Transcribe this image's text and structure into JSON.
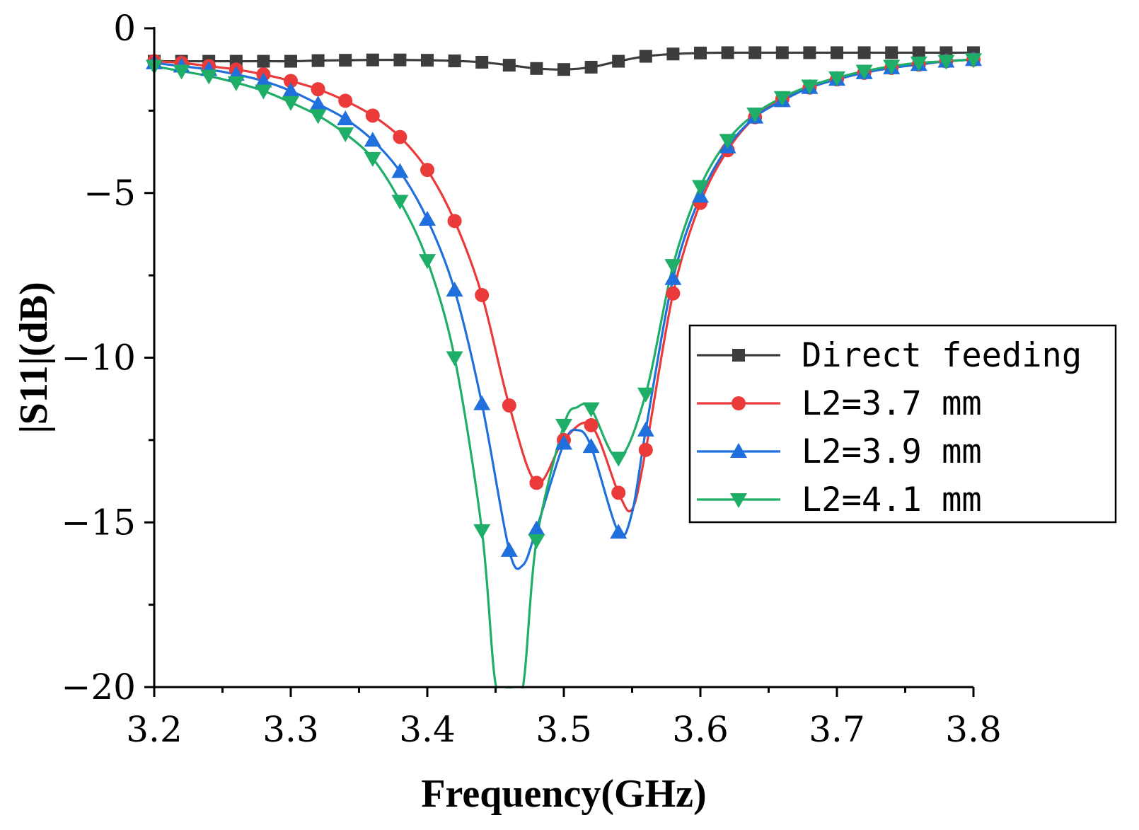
{
  "chart_data": {
    "type": "line",
    "title": "",
    "xlabel": "Frequency(GHz)",
    "ylabel": "|S11|(dB)",
    "xlim": [
      3.2,
      3.8
    ],
    "ylim": [
      -20,
      0
    ],
    "x_ticks": [
      3.2,
      3.3,
      3.4,
      3.5,
      3.6,
      3.7,
      3.8
    ],
    "x_tick_labels": [
      "3.2",
      "3.3",
      "3.4",
      "3.5",
      "3.6",
      "3.7",
      "3.8"
    ],
    "y_ticks": [
      0,
      -5,
      -10,
      -15,
      -20
    ],
    "y_tick_labels": [
      "0",
      "−5",
      "−10",
      "−15",
      "−20"
    ],
    "grid": false,
    "legend_position": "right",
    "series": [
      {
        "name": "Direct feeding",
        "color": "#3d3d3d",
        "marker": "square",
        "x": [
          3.2,
          3.22,
          3.24,
          3.26,
          3.28,
          3.3,
          3.32,
          3.34,
          3.36,
          3.38,
          3.4,
          3.42,
          3.44,
          3.46,
          3.48,
          3.5,
          3.52,
          3.54,
          3.56,
          3.58,
          3.6,
          3.62,
          3.64,
          3.66,
          3.68,
          3.7,
          3.72,
          3.74,
          3.76,
          3.78,
          3.8
        ],
        "y": [
          -1.0,
          -1.0,
          -1.0,
          -1.0,
          -1.0,
          -1.0,
          -0.98,
          -0.97,
          -0.96,
          -0.96,
          -0.97,
          -0.99,
          -1.03,
          -1.12,
          -1.22,
          -1.25,
          -1.18,
          -1.0,
          -0.85,
          -0.78,
          -0.75,
          -0.74,
          -0.74,
          -0.74,
          -0.74,
          -0.74,
          -0.74,
          -0.74,
          -0.74,
          -0.74,
          -0.74
        ]
      },
      {
        "name": "L2=3.7 mm",
        "color": "#ea3a3a",
        "marker": "circle",
        "x": [
          3.2,
          3.22,
          3.24,
          3.26,
          3.28,
          3.3,
          3.32,
          3.34,
          3.36,
          3.38,
          3.4,
          3.42,
          3.44,
          3.46,
          3.48,
          3.5,
          3.52,
          3.54,
          3.55,
          3.56,
          3.58,
          3.6,
          3.62,
          3.64,
          3.66,
          3.68,
          3.7,
          3.72,
          3.74,
          3.76,
          3.78,
          3.8
        ],
        "y": [
          -1.0,
          -1.05,
          -1.15,
          -1.25,
          -1.4,
          -1.6,
          -1.85,
          -2.2,
          -2.65,
          -3.3,
          -4.3,
          -5.85,
          -8.1,
          -11.45,
          -13.8,
          -12.5,
          -12.05,
          -14.1,
          -14.6,
          -12.8,
          -8.05,
          -5.3,
          -3.7,
          -2.7,
          -2.15,
          -1.8,
          -1.55,
          -1.35,
          -1.2,
          -1.1,
          -1.0,
          -0.95
        ]
      },
      {
        "name": "L2=3.9 mm",
        "color": "#1f6fdd",
        "marker": "triangle-up",
        "x": [
          3.2,
          3.22,
          3.24,
          3.26,
          3.28,
          3.3,
          3.32,
          3.34,
          3.36,
          3.38,
          3.4,
          3.42,
          3.44,
          3.46,
          3.47,
          3.48,
          3.5,
          3.51,
          3.52,
          3.54,
          3.55,
          3.56,
          3.58,
          3.6,
          3.62,
          3.64,
          3.66,
          3.68,
          3.7,
          3.72,
          3.74,
          3.76,
          3.78,
          3.8
        ],
        "y": [
          -1.05,
          -1.15,
          -1.25,
          -1.4,
          -1.6,
          -1.9,
          -2.3,
          -2.75,
          -3.4,
          -4.35,
          -5.8,
          -7.95,
          -11.4,
          -15.85,
          -16.3,
          -15.2,
          -12.6,
          -12.2,
          -12.7,
          -15.3,
          -14.7,
          -12.2,
          -7.6,
          -5.1,
          -3.6,
          -2.7,
          -2.2,
          -1.8,
          -1.55,
          -1.35,
          -1.2,
          -1.1,
          -1.0,
          -0.95
        ]
      },
      {
        "name": "L2=4.1 mm",
        "color": "#1fae68",
        "marker": "triangle-down",
        "x": [
          3.2,
          3.22,
          3.24,
          3.26,
          3.28,
          3.3,
          3.32,
          3.34,
          3.36,
          3.38,
          3.4,
          3.42,
          3.44,
          3.45,
          3.46,
          3.47,
          3.48,
          3.5,
          3.51,
          3.52,
          3.54,
          3.56,
          3.58,
          3.6,
          3.62,
          3.64,
          3.66,
          3.68,
          3.7,
          3.72,
          3.74,
          3.76,
          3.78,
          3.8
        ],
        "y": [
          -1.15,
          -1.3,
          -1.45,
          -1.65,
          -1.9,
          -2.25,
          -2.65,
          -3.2,
          -3.95,
          -5.25,
          -7.05,
          -10.0,
          -15.25,
          -19.9,
          -20.0,
          -20.0,
          -15.55,
          -12.05,
          -11.5,
          -11.55,
          -13.05,
          -11.1,
          -7.2,
          -4.8,
          -3.4,
          -2.6,
          -2.1,
          -1.75,
          -1.5,
          -1.3,
          -1.15,
          -1.05,
          -1.0,
          -0.95
        ]
      }
    ]
  }
}
